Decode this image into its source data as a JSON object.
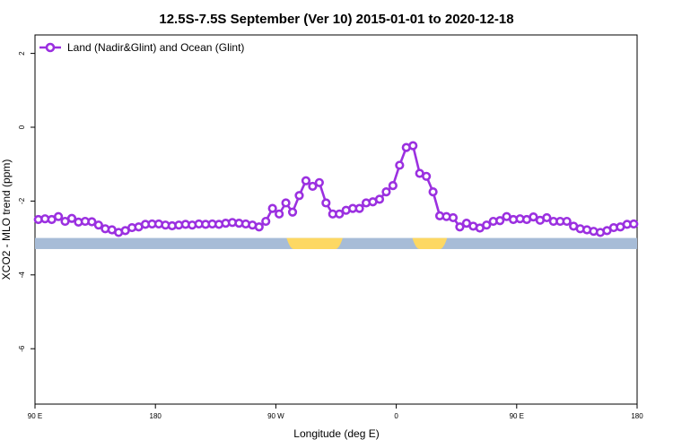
{
  "chart_data": {
    "type": "line",
    "title": "12.5S-7.5S September (Ver 10)   2015-01-01 to 2020-12-18",
    "xlabel": "Longitude (deg E)",
    "ylabel": "XCO2 - MLO trend (ppm)",
    "x_ticks": [
      {
        "value": 90,
        "label": "90 E"
      },
      {
        "value": 180,
        "label": "180"
      },
      {
        "value": 270,
        "label": "90 W"
      },
      {
        "value": 360,
        "label": "0"
      },
      {
        "value": 450,
        "label": "90 E"
      },
      {
        "value": 540,
        "label": "180"
      }
    ],
    "y_ticks": [
      {
        "value": 2,
        "label": "2"
      },
      {
        "value": 0,
        "label": "0"
      },
      {
        "value": -2,
        "label": "-2"
      },
      {
        "value": -4,
        "label": "-4"
      },
      {
        "value": -6,
        "label": "-6"
      }
    ],
    "xlim": [
      90,
      540
    ],
    "ylim": [
      -7.5,
      2.5
    ],
    "grid": false,
    "legend_position": "top-left",
    "series": [
      {
        "name": "Land (Nadir&Glint) and Ocean (Glint)",
        "color": "#9B30E0",
        "x": [
          92.5,
          97.5,
          102.5,
          107.5,
          112.5,
          117.5,
          122.5,
          127.5,
          132.5,
          137.5,
          142.5,
          147.5,
          152.5,
          157.5,
          162.5,
          167.5,
          172.5,
          177.5,
          182.5,
          187.5,
          192.5,
          197.5,
          202.5,
          207.5,
          212.5,
          217.5,
          222.5,
          227.5,
          232.5,
          237.5,
          242.5,
          247.5,
          252.5,
          257.5,
          262.5,
          267.5,
          272.5,
          277.5,
          282.5,
          287.5,
          292.5,
          297.5,
          302.5,
          307.5,
          312.5,
          317.5,
          322.5,
          327.5,
          332.5,
          337.5,
          342.5,
          347.5,
          352.5,
          357.5,
          362.5,
          367.5,
          372.5,
          377.5,
          382.5,
          387.5,
          392.5,
          397.5,
          402.5,
          407.5,
          412.5,
          417.5,
          422.5,
          427.5,
          432.5,
          437.5,
          442.5,
          447.5,
          452.5,
          457.5,
          462.5,
          467.5,
          472.5,
          477.5,
          482.5,
          487.5,
          492.5,
          497.5,
          502.5,
          507.5,
          512.5,
          517.5,
          522.5,
          527.5,
          532.5,
          537.5
        ],
        "y": [
          -2.5,
          -2.48,
          -2.5,
          -2.42,
          -2.55,
          -2.47,
          -2.57,
          -2.55,
          -2.56,
          -2.65,
          -2.75,
          -2.78,
          -2.85,
          -2.8,
          -2.72,
          -2.7,
          -2.63,
          -2.62,
          -2.62,
          -2.65,
          -2.67,
          -2.65,
          -2.63,
          -2.65,
          -2.62,
          -2.63,
          -2.62,
          -2.63,
          -2.6,
          -2.58,
          -2.6,
          -2.62,
          -2.65,
          -2.7,
          -2.55,
          -2.2,
          -2.35,
          -2.05,
          -2.3,
          -1.85,
          -1.45,
          -1.6,
          -1.5,
          -2.05,
          -2.35,
          -2.35,
          -2.25,
          -2.2,
          -2.2,
          -2.05,
          -2.02,
          -1.95,
          -1.75,
          -1.58,
          -1.03,
          -0.55,
          -0.5,
          -1.25,
          -1.33,
          -1.75,
          -2.4,
          -2.42,
          -2.45,
          -2.7,
          -2.6,
          -2.68,
          -2.73,
          -2.65,
          -2.55,
          -2.53,
          -2.42,
          -2.5,
          -2.48,
          -2.5,
          -2.43,
          -2.52,
          -2.45,
          -2.55,
          -2.55,
          -2.55,
          -2.68,
          -2.75,
          -2.78,
          -2.82,
          -2.85,
          -2.8,
          -2.72,
          -2.7,
          -2.63,
          -2.62
        ]
      }
    ],
    "land_ocean_bar": {
      "y_range": [
        -3.3,
        -3.0
      ],
      "ocean_color": "#A7BCD7",
      "land_color": "#FDD863",
      "land_spans": [
        [
          278,
          320
        ],
        [
          372,
          398
        ]
      ]
    }
  }
}
